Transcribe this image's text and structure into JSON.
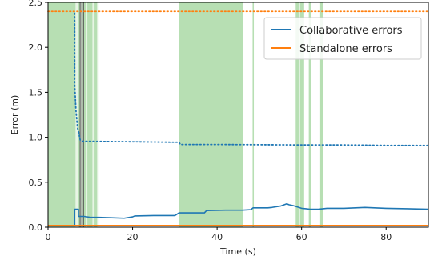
{
  "chart_data": {
    "type": "line",
    "xlabel": "Time (s)",
    "ylabel": "Error (m)",
    "xlim": [
      0,
      90
    ],
    "ylim": [
      0,
      2.5
    ],
    "xticks": [
      0,
      20,
      40,
      60,
      80
    ],
    "yticks": [
      0.0,
      0.5,
      1.0,
      1.5,
      2.0,
      2.5
    ],
    "xtick_labels": [
      "0",
      "20",
      "40",
      "60",
      "80"
    ],
    "ytick_labels": [
      "0.0",
      "0.5",
      "1.0",
      "1.5",
      "2.0",
      "2.5"
    ],
    "legend": {
      "location": "top-right",
      "entries": [
        "Collaborative errors",
        "Standalone errors"
      ]
    },
    "colors": {
      "collaborative": "#1f77b4",
      "standalone": "#ff7f0e",
      "band_light": "#e8f5e5",
      "band_dark": "#b7dfb3"
    },
    "background_bands": [
      {
        "x0": 0,
        "x1": 12,
        "shade": "light"
      },
      {
        "x0": 0,
        "x1": 6.5,
        "shade": "dark"
      },
      {
        "x0": 7.2,
        "x1": 7.6,
        "shade": "dark"
      },
      {
        "x0": 8.2,
        "x1": 9.1,
        "shade": "dark"
      },
      {
        "x0": 9.3,
        "x1": 10.5,
        "shade": "dark"
      },
      {
        "x0": 11.0,
        "x1": 11.6,
        "shade": "dark"
      },
      {
        "x0": 31,
        "x1": 46.2,
        "shade": "dark"
      },
      {
        "x0": 48.4,
        "x1": 48.7,
        "shade": "dark"
      },
      {
        "x0": 58.6,
        "x1": 59.3,
        "shade": "dark"
      },
      {
        "x0": 59.6,
        "x1": 60.6,
        "shade": "dark"
      },
      {
        "x0": 61.7,
        "x1": 62.3,
        "shade": "dark"
      },
      {
        "x0": 64.4,
        "x1": 65.1,
        "shade": "dark"
      }
    ],
    "vertical_lines": [
      7.6,
      8.0,
      8.4
    ],
    "series": [
      {
        "name": "Collaborative errors",
        "style": "solid",
        "color": "#1f77b4",
        "x": [
          0,
          6.3,
          6.3,
          7.2,
          7.2,
          8.5,
          10,
          12,
          15,
          18,
          20,
          20.5,
          25,
          30,
          31,
          37,
          37.5,
          42,
          46,
          48,
          48.5,
          52,
          53,
          55,
          56.5,
          57,
          58,
          60,
          62,
          64,
          66,
          70,
          75,
          80,
          85,
          90
        ],
        "y": [
          0.02,
          0.02,
          0.2,
          0.2,
          0.12,
          0.12,
          0.11,
          0.11,
          0.105,
          0.1,
          0.115,
          0.125,
          0.13,
          0.13,
          0.16,
          0.16,
          0.185,
          0.19,
          0.19,
          0.195,
          0.215,
          0.215,
          0.22,
          0.235,
          0.26,
          0.25,
          0.24,
          0.21,
          0.2,
          0.2,
          0.21,
          0.21,
          0.22,
          0.21,
          0.205,
          0.2
        ]
      },
      {
        "name": "",
        "style": "dotted",
        "color": "#1f77b4",
        "x": [
          6.3,
          6.3,
          6.6,
          7.0,
          7.3,
          7.6,
          8.2,
          10,
          20,
          30,
          31,
          31.3,
          40,
          60,
          70,
          80,
          90
        ],
        "y": [
          2.38,
          1.6,
          1.3,
          1.1,
          1.05,
          0.97,
          0.955,
          0.955,
          0.95,
          0.945,
          0.945,
          0.92,
          0.92,
          0.915,
          0.915,
          0.91,
          0.91
        ]
      },
      {
        "name": "Standalone errors",
        "style": "solid",
        "color": "#ff7f0e",
        "x": [
          0,
          90
        ],
        "y": [
          0.02,
          0.02
        ]
      },
      {
        "name": "",
        "style": "dotted",
        "color": "#ff7f0e",
        "x": [
          0,
          90
        ],
        "y": [
          2.4,
          2.4
        ]
      }
    ]
  }
}
